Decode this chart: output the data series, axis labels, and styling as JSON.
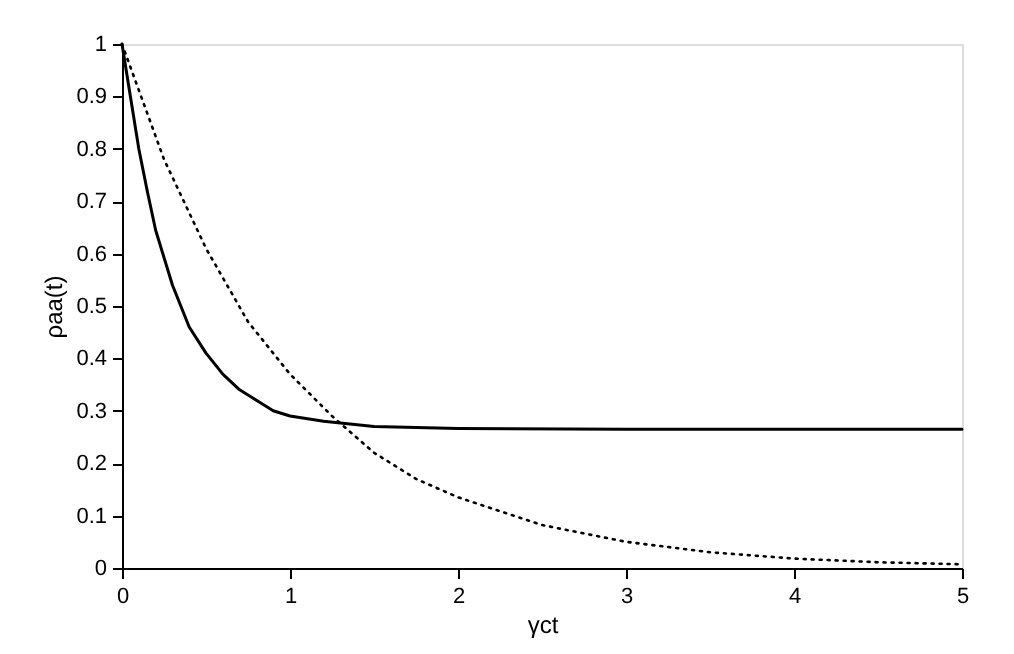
{
  "chart_data": {
    "type": "line",
    "xlabel": "γct",
    "ylabel": "ρaa(t)",
    "xlim": [
      0,
      5
    ],
    "ylim": [
      0,
      1
    ],
    "xticks": [
      0,
      1,
      2,
      3,
      4,
      5
    ],
    "yticks": [
      0,
      0.1,
      0.2,
      0.3,
      0.4,
      0.5,
      0.6,
      0.7,
      0.8,
      0.9,
      1
    ],
    "grid": false,
    "marker": "none",
    "series": [
      {
        "color": "#000000",
        "line_style": "solid",
        "x": [
          0,
          0.05,
          0.1,
          0.15,
          0.2,
          0.3,
          0.4,
          0.5,
          0.6,
          0.7,
          0.8,
          0.9,
          1.0,
          1.2,
          1.5,
          2,
          3,
          4,
          5
        ],
        "values": [
          1,
          0.9,
          0.8,
          0.72,
          0.645,
          0.54,
          0.46,
          0.41,
          0.37,
          0.34,
          0.32,
          0.3,
          0.29,
          0.28,
          0.27,
          0.266,
          0.265,
          0.265,
          0.265
        ]
      },
      {
        "color": "#000000",
        "line_style": "dotted",
        "x": [
          0,
          0.25,
          0.5,
          0.75,
          1,
          1.25,
          1.5,
          1.75,
          2,
          2.5,
          3,
          3.5,
          4,
          4.5,
          5
        ],
        "values": [
          1,
          0.78,
          0.61,
          0.47,
          0.37,
          0.29,
          0.22,
          0.17,
          0.135,
          0.082,
          0.05,
          0.03,
          0.018,
          0.011,
          0.007
        ]
      }
    ]
  }
}
